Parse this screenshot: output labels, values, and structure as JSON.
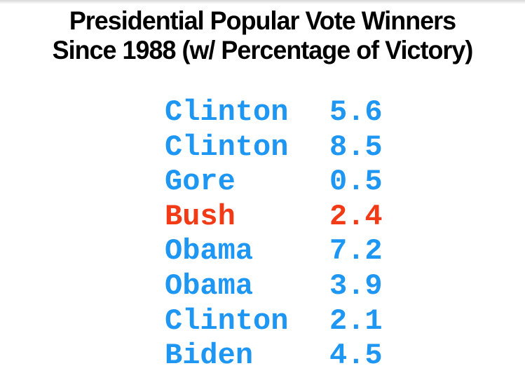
{
  "title": {
    "line1": "Presidential Popular Vote Winners",
    "line2": "Since 1988 (w/ Percentage of Victory)"
  },
  "colors": {
    "blue": "#1E96F3",
    "red": "#F23A17",
    "title_text": "#000000",
    "background": "#FFFFFF"
  },
  "chart_data": {
    "type": "table",
    "title": "Presidential Popular Vote Winners Since 1988 (w/ Percentage of Victory)",
    "columns": [
      "winner",
      "victory_margin_pct"
    ],
    "rows": [
      {
        "winner": "Clinton",
        "margin": "5.6",
        "color": "blue"
      },
      {
        "winner": "Clinton",
        "margin": "8.5",
        "color": "blue"
      },
      {
        "winner": "Gore",
        "margin": "0.5",
        "color": "blue"
      },
      {
        "winner": "Bush",
        "margin": "2.4",
        "color": "red"
      },
      {
        "winner": "Obama",
        "margin": "7.2",
        "color": "blue"
      },
      {
        "winner": "Obama",
        "margin": "3.9",
        "color": "blue"
      },
      {
        "winner": "Clinton",
        "margin": "2.1",
        "color": "blue"
      },
      {
        "winner": "Biden",
        "margin": "4.5",
        "color": "blue"
      }
    ]
  }
}
